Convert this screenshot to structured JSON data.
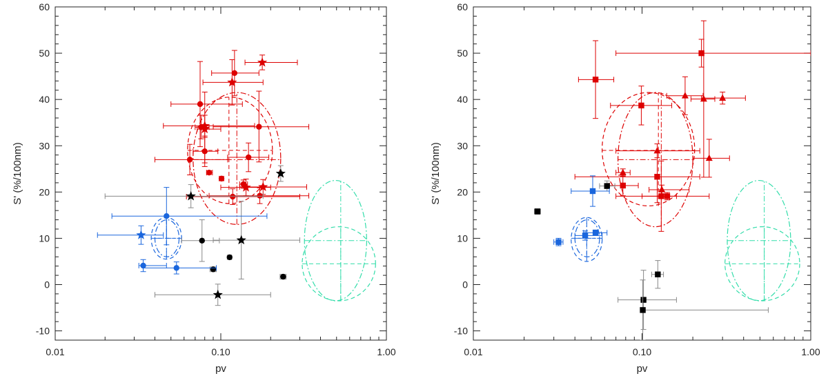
{
  "chart_data": [
    {
      "id": "left",
      "type": "scatter",
      "xscale": "log",
      "xlim": [
        0.01,
        1.0
      ],
      "ylim": [
        -12,
        60
      ],
      "xlabel": "pv",
      "ylabel": "S' (%/100nm)",
      "xticks": [
        {
          "v": 0.01,
          "label": "0.01"
        },
        {
          "v": 0.1,
          "label": "0.10"
        },
        {
          "v": 1.0,
          "label": "1.00"
        }
      ],
      "yticks": [
        {
          "v": -10,
          "label": "-10"
        },
        {
          "v": 0,
          "label": "0"
        },
        {
          "v": 10,
          "label": "10"
        },
        {
          "v": 20,
          "label": "20"
        },
        {
          "v": 30,
          "label": "30"
        },
        {
          "v": 40,
          "label": "40"
        },
        {
          "v": 50,
          "label": "50"
        },
        {
          "v": 60,
          "label": "60"
        }
      ],
      "series": [
        {
          "name": "red",
          "color": "#dd0000",
          "points": [
            {
              "m": "circle",
              "x": 0.121,
              "y": 45.7,
              "xl": 0.088,
              "xh": 0.17,
              "yl": 40.8,
              "yh": 50.6
            },
            {
              "m": "star",
              "x": 0.178,
              "y": 48.0,
              "xl": 0.14,
              "xh": 0.29,
              "yl": 46.4,
              "yh": 49.6
            },
            {
              "m": "star",
              "x": 0.117,
              "y": 43.7,
              "xl": 0.078,
              "xh": 0.18,
              "yl": 38.8,
              "yh": 48.6
            },
            {
              "m": "circle",
              "x": 0.075,
              "y": 39.0,
              "xl": 0.05,
              "xh": 0.135,
              "yl": 29.8,
              "yh": 48.2
            },
            {
              "m": "circle",
              "x": 0.076,
              "y": 34.0,
              "xl": 0.07,
              "xh": 0.085,
              "yl": 31.5,
              "yh": 36.6
            },
            {
              "m": "star",
              "x": 0.08,
              "y": 34.3,
              "xl": 0.045,
              "xh": 0.16,
              "yl": 31.8,
              "yh": 36.6
            },
            {
              "m": "star",
              "x": 0.08,
              "y": 33.6,
              "xl": 0.072,
              "xh": 0.1,
              "yl": 26.3,
              "yh": 41.6
            },
            {
              "m": "circle",
              "x": 0.17,
              "y": 34.1,
              "xl": 0.09,
              "xh": 0.34,
              "yl": 26.5,
              "yh": 41.8
            },
            {
              "m": "circle",
              "x": 0.08,
              "y": 28.8,
              "xl": 0.068,
              "xh": 0.096,
              "yl": 25.5,
              "yh": 32.1
            },
            {
              "m": "circle",
              "x": 0.065,
              "y": 27.0,
              "xl": 0.04,
              "xh": 0.11,
              "yl": 23.7,
              "yh": 30.3
            },
            {
              "m": "circle",
              "x": 0.147,
              "y": 27.5,
              "xl": 0.11,
              "xh": 0.195,
              "yl": 24.4,
              "yh": 30.6
            },
            {
              "m": "circle",
              "x": 0.085,
              "y": 24.2,
              "xl": 0.082,
              "xh": 0.089,
              "yl": 23.8,
              "yh": 24.6
            },
            {
              "m": "circle",
              "x": 0.101,
              "y": 22.9,
              "xl": 0.098,
              "xh": 0.104,
              "yl": 22.5,
              "yh": 23.3
            },
            {
              "m": "circle",
              "x": 0.137,
              "y": 21.7,
              "xl": 0.13,
              "xh": 0.145,
              "yl": 20.8,
              "yh": 22.6
            },
            {
              "m": "star",
              "x": 0.142,
              "y": 21.0,
              "xl": 0.1,
              "xh": 0.2,
              "yl": 19.2,
              "yh": 22.8
            },
            {
              "m": "star",
              "x": 0.18,
              "y": 21.1,
              "xl": 0.13,
              "xh": 0.33,
              "yl": 19.5,
              "yh": 22.7
            },
            {
              "m": "circle",
              "x": 0.118,
              "y": 19.0,
              "xl": 0.062,
              "xh": 0.3,
              "yl": 17.3,
              "yh": 20.7
            },
            {
              "m": "circle",
              "x": 0.172,
              "y": 19.2,
              "xl": 0.085,
              "xh": 0.34,
              "yl": 17.5,
              "yh": 20.9
            }
          ]
        },
        {
          "name": "black",
          "color": "#000000",
          "points": [
            {
              "m": "star",
              "x": 0.23,
              "y": 24.0,
              "xl": 0.225,
              "xh": 0.235,
              "yl": 22.3,
              "yh": 25.7
            },
            {
              "m": "star",
              "x": 0.066,
              "y": 19.1,
              "xl": 0.02,
              "xh": 0.18,
              "yl": 16.6,
              "yh": 21.6
            },
            {
              "m": "circle",
              "x": 0.077,
              "y": 9.5,
              "xl": 0.058,
              "xh": 0.098,
              "yl": 5.0,
              "yh": 14.0
            },
            {
              "m": "star",
              "x": 0.133,
              "y": 9.6,
              "xl": 0.09,
              "xh": 0.3,
              "yl": 1.2,
              "yh": 18.0
            },
            {
              "m": "circle",
              "x": 0.113,
              "y": 5.9,
              "xl": 0.11,
              "xh": 0.116,
              "yl": 5.5,
              "yh": 6.3
            },
            {
              "m": "circle",
              "x": 0.09,
              "y": 3.3,
              "xl": 0.086,
              "xh": 0.094,
              "yl": 2.8,
              "yh": 3.8
            },
            {
              "m": "circle",
              "x": 0.238,
              "y": 1.7,
              "xl": 0.228,
              "xh": 0.248,
              "yl": 1.2,
              "yh": 2.2
            },
            {
              "m": "star",
              "x": 0.096,
              "y": -2.2,
              "xl": 0.04,
              "xh": 0.2,
              "yl": -4.5,
              "yh": 0.1
            }
          ]
        },
        {
          "name": "blue",
          "color": "#1a66dd",
          "points": [
            {
              "m": "circle",
              "x": 0.047,
              "y": 14.8,
              "xl": 0.022,
              "xh": 0.19,
              "yl": 8.6,
              "yh": 21.0
            },
            {
              "m": "star",
              "x": 0.033,
              "y": 10.7,
              "xl": 0.018,
              "xh": 0.045,
              "yl": 8.7,
              "yh": 12.7
            },
            {
              "m": "circle",
              "x": 0.034,
              "y": 4.1,
              "xl": 0.032,
              "xh": 0.047,
              "yl": 2.8,
              "yh": 5.4
            },
            {
              "m": "circle",
              "x": 0.054,
              "y": 3.6,
              "xl": 0.034,
              "xh": 0.094,
              "yl": 2.3,
              "yh": 4.9
            }
          ]
        }
      ],
      "ellipses": [
        {
          "color": "#dd0000",
          "dash": "dashed",
          "cx": 0.112,
          "cy": 29.0,
          "xl": 0.063,
          "xh": 0.205,
          "yl": 17.5,
          "yh": 40.5
        },
        {
          "color": "#dd0000",
          "dash": "dashdot",
          "cx": 0.125,
          "cy": 27.0,
          "xl": 0.068,
          "xh": 0.23,
          "yl": 13.0,
          "yh": 41.5
        },
        {
          "color": "#1a66dd",
          "dash": "dashed",
          "cx": 0.047,
          "cy": 10.0,
          "xl": 0.038,
          "xh": 0.058,
          "yl": 5.5,
          "yh": 14.5
        },
        {
          "color": "#1a66dd",
          "dash": "dashdot",
          "cx": 0.047,
          "cy": 10.0,
          "xl": 0.04,
          "xh": 0.056,
          "yl": 6.0,
          "yh": 14.0
        },
        {
          "color": "#33ddaa",
          "dash": "dashdot",
          "cx": 0.53,
          "cy": 9.5,
          "xl": 0.32,
          "xh": 0.76,
          "yl": -3.5,
          "yh": 22.5
        },
        {
          "color": "#33ddaa",
          "dash": "dashed",
          "cx": 0.53,
          "cy": 4.5,
          "xl": 0.31,
          "xh": 0.86,
          "yl": -3.5,
          "yh": 12.5
        }
      ]
    },
    {
      "id": "right",
      "type": "scatter",
      "xscale": "log",
      "xlim": [
        0.01,
        1.0
      ],
      "ylim": [
        -12,
        60
      ],
      "xlabel": "pv",
      "ylabel": "S' (%/100nm)",
      "xticks": [
        {
          "v": 0.01,
          "label": "0.01"
        },
        {
          "v": 0.1,
          "label": "0.10"
        },
        {
          "v": 1.0,
          "label": "1.00"
        }
      ],
      "yticks": [
        {
          "v": -10,
          "label": "-10"
        },
        {
          "v": 0,
          "label": "0"
        },
        {
          "v": 10,
          "label": "10"
        },
        {
          "v": 20,
          "label": "20"
        },
        {
          "v": 30,
          "label": "30"
        },
        {
          "v": 40,
          "label": "40"
        },
        {
          "v": 50,
          "label": "50"
        },
        {
          "v": 60,
          "label": "60"
        }
      ],
      "series": [
        {
          "name": "red",
          "color": "#dd0000",
          "points": [
            {
              "m": "square",
              "x": 0.225,
              "y": 50.0,
              "xl": 0.07,
              "xh": 1.0,
              "yl": 47.0,
              "yh": 53.0
            },
            {
              "m": "square",
              "x": 0.053,
              "y": 44.3,
              "xl": 0.042,
              "xh": 0.068,
              "yl": 35.9,
              "yh": 52.7
            },
            {
              "m": "triangle",
              "x": 0.18,
              "y": 40.8,
              "xl": 0.14,
              "xh": 0.23,
              "yl": 36.7,
              "yh": 44.9
            },
            {
              "m": "triangle",
              "x": 0.232,
              "y": 40.1,
              "xl": 0.195,
              "xh": 0.27,
              "yl": 23.2,
              "yh": 57.0
            },
            {
              "m": "triangle",
              "x": 0.3,
              "y": 40.3,
              "xl": 0.225,
              "xh": 0.41,
              "yl": 39.0,
              "yh": 41.6
            },
            {
              "m": "square",
              "x": 0.099,
              "y": 38.7,
              "xl": 0.065,
              "xh": 0.15,
              "yl": 34.5,
              "yh": 42.9
            },
            {
              "m": "triangle",
              "x": 0.123,
              "y": 28.9,
              "xl": 0.07,
              "xh": 0.22,
              "yl": 27.4,
              "yh": 30.4
            },
            {
              "m": "triangle",
              "x": 0.25,
              "y": 27.3,
              "xl": 0.2,
              "xh": 0.33,
              "yl": 23.2,
              "yh": 31.4
            },
            {
              "m": "triangle",
              "x": 0.077,
              "y": 24.2,
              "xl": 0.07,
              "xh": 0.085,
              "yl": 23.4,
              "yh": 25.0
            },
            {
              "m": "square",
              "x": 0.123,
              "y": 23.3,
              "xl": 0.04,
              "xh": 0.22,
              "yl": 17.7,
              "yh": 28.9
            },
            {
              "m": "square",
              "x": 0.077,
              "y": 21.4,
              "xl": 0.064,
              "xh": 0.095,
              "yl": 19.2,
              "yh": 23.6
            },
            {
              "m": "triangle",
              "x": 0.131,
              "y": 20.5,
              "xl": 0.11,
              "xh": 0.19,
              "yl": 19.5,
              "yh": 21.5
            },
            {
              "m": "square",
              "x": 0.13,
              "y": 19.1,
              "xl": 0.07,
              "xh": 0.16,
              "yl": 11.5,
              "yh": 26.7
            },
            {
              "m": "square",
              "x": 0.141,
              "y": 19.1,
              "xl": 0.1,
              "xh": 0.25,
              "yl": 18.3,
              "yh": 19.9
            }
          ]
        },
        {
          "name": "black",
          "color": "#000000",
          "points": [
            {
              "m": "square",
              "x": 0.062,
              "y": 21.3,
              "xl": 0.056,
              "xh": 0.069,
              "yl": 20.2,
              "yh": 22.4
            },
            {
              "m": "square",
              "x": 0.024,
              "y": 15.8,
              "xl": 0.023,
              "xh": 0.025,
              "yl": 15.2,
              "yh": 16.4
            },
            {
              "m": "square",
              "x": 0.124,
              "y": 2.2,
              "xl": 0.114,
              "xh": 0.134,
              "yl": -0.8,
              "yh": 5.2
            },
            {
              "m": "square",
              "x": 0.102,
              "y": -3.3,
              "xl": 0.072,
              "xh": 0.16,
              "yl": -9.7,
              "yh": 3.1
            },
            {
              "m": "square",
              "x": 0.101,
              "y": -5.5,
              "xl": 0.098,
              "xh": 0.56,
              "yl": -12.0,
              "yh": 1.0
            }
          ]
        },
        {
          "name": "blue",
          "color": "#1a66dd",
          "points": [
            {
              "m": "square",
              "x": 0.051,
              "y": 20.2,
              "xl": 0.038,
              "xh": 0.064,
              "yl": 16.9,
              "yh": 23.5
            },
            {
              "m": "square",
              "x": 0.032,
              "y": 9.2,
              "xl": 0.03,
              "xh": 0.034,
              "yl": 8.4,
              "yh": 10.0
            },
            {
              "m": "square",
              "x": 0.046,
              "y": 10.6,
              "xl": 0.04,
              "xh": 0.058,
              "yl": 9.6,
              "yh": 11.6
            },
            {
              "m": "square",
              "x": 0.053,
              "y": 11.2,
              "xl": 0.045,
              "xh": 0.062,
              "yl": 10.6,
              "yh": 11.8
            }
          ]
        }
      ],
      "ellipses": [
        {
          "color": "#dd0000",
          "dash": "dashed",
          "cx": 0.125,
          "cy": 29.0,
          "xl": 0.058,
          "xh": 0.205,
          "yl": 17.0,
          "yh": 41.5
        },
        {
          "color": "#dd0000",
          "dash": "dashdot",
          "cx": 0.13,
          "cy": 27.0,
          "xl": 0.072,
          "xh": 0.2,
          "yl": 12.5,
          "yh": 41.5
        },
        {
          "color": "#1a66dd",
          "dash": "dashed",
          "cx": 0.047,
          "cy": 10.0,
          "xl": 0.038,
          "xh": 0.058,
          "yl": 5.0,
          "yh": 14.5
        },
        {
          "color": "#1a66dd",
          "dash": "dashdot",
          "cx": 0.047,
          "cy": 10.0,
          "xl": 0.04,
          "xh": 0.056,
          "yl": 6.0,
          "yh": 14.0
        },
        {
          "color": "#33ddaa",
          "dash": "dashdot",
          "cx": 0.53,
          "cy": 9.5,
          "xl": 0.32,
          "xh": 0.76,
          "yl": -3.5,
          "yh": 22.5
        },
        {
          "color": "#33ddaa",
          "dash": "dashed",
          "cx": 0.53,
          "cy": 4.5,
          "xl": 0.31,
          "xh": 0.86,
          "yl": -3.5,
          "yh": 12.5
        }
      ]
    }
  ]
}
